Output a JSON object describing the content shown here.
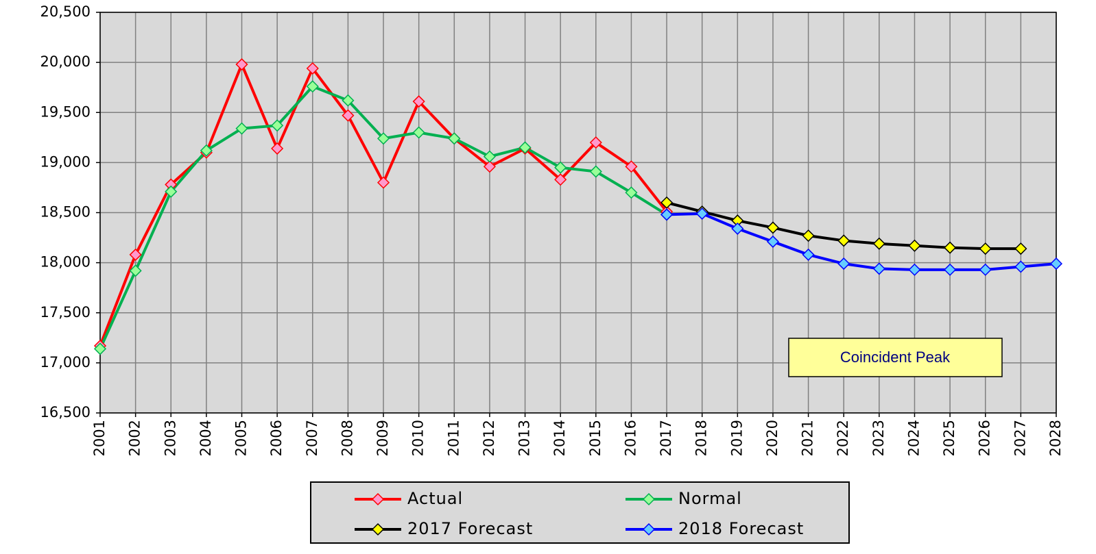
{
  "chart_data": {
    "type": "line",
    "categories": [
      "2001",
      "2002",
      "2003",
      "2004",
      "2005",
      "2006",
      "2007",
      "2008",
      "2009",
      "2010",
      "2011",
      "2012",
      "2013",
      "2014",
      "2015",
      "2016",
      "2017",
      "2018",
      "2019",
      "2020",
      "2021",
      "2022",
      "2023",
      "2024",
      "2025",
      "2026",
      "2027",
      "2028"
    ],
    "series": [
      {
        "name": "Actual",
        "color": "#ff0000",
        "marker_color": "#ff99cc",
        "values": [
          17170,
          18080,
          18780,
          19100,
          19980,
          19140,
          19940,
          19470,
          18800,
          19610,
          19240,
          18960,
          19140,
          18830,
          19200,
          18960,
          18510,
          null,
          null,
          null,
          null,
          null,
          null,
          null,
          null,
          null,
          null,
          null
        ]
      },
      {
        "name": "Normal",
        "color": "#00b050",
        "marker_color": "#99ff99",
        "values": [
          17140,
          17920,
          18710,
          19120,
          19340,
          19370,
          19760,
          19620,
          19240,
          19300,
          19240,
          19060,
          19150,
          18950,
          18910,
          18700,
          18480,
          null,
          null,
          null,
          null,
          null,
          null,
          null,
          null,
          null,
          null,
          null
        ]
      },
      {
        "name": "2017 Forecast",
        "color": "#000000",
        "marker_color": "#ffff00",
        "values": [
          null,
          null,
          null,
          null,
          null,
          null,
          null,
          null,
          null,
          null,
          null,
          null,
          null,
          null,
          null,
          null,
          18600,
          18510,
          18420,
          18350,
          18270,
          18220,
          18190,
          18170,
          18150,
          18140,
          18140,
          null
        ]
      },
      {
        "name": "2018 Forecast",
        "color": "#0000ff",
        "marker_color": "#66ccff",
        "values": [
          null,
          null,
          null,
          null,
          null,
          null,
          null,
          null,
          null,
          null,
          null,
          null,
          null,
          null,
          null,
          null,
          18480,
          18490,
          18340,
          18210,
          18080,
          17990,
          17940,
          17930,
          17930,
          17930,
          17960,
          17990
        ]
      }
    ],
    "ylim": [
      16500,
      20500
    ],
    "yticks": [
      {
        "value": 16500,
        "label": "16,500"
      },
      {
        "value": 17000,
        "label": "17,000"
      },
      {
        "value": 17500,
        "label": "17,500"
      },
      {
        "value": 18000,
        "label": "18,000"
      },
      {
        "value": 18500,
        "label": "18,500"
      },
      {
        "value": 19000,
        "label": "19,000"
      },
      {
        "value": 19500,
        "label": "19,500"
      },
      {
        "value": 20000,
        "label": "20,000"
      },
      {
        "value": 20500,
        "label": "20,500"
      }
    ],
    "grid": true,
    "annotation": "Coincident Peak",
    "legend": "bottom"
  }
}
